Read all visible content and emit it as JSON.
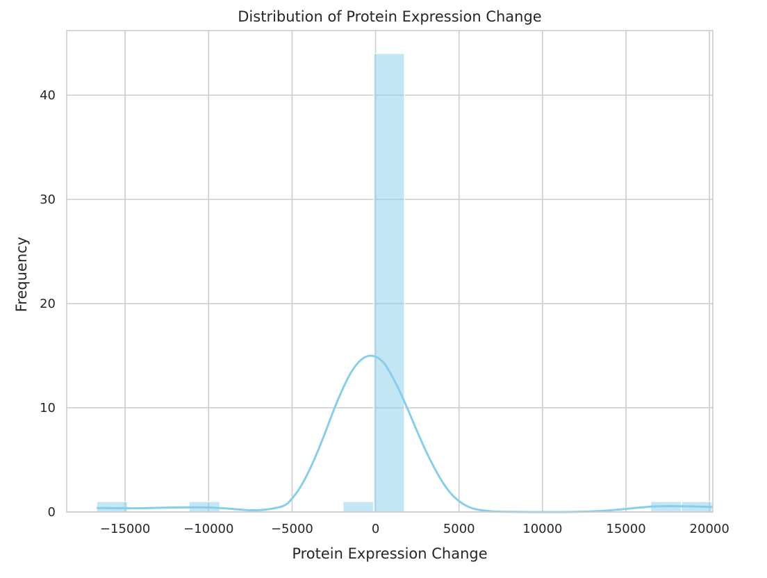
{
  "chart_data": {
    "type": "bar",
    "title": "Distribution of Protein Expression Change",
    "xlabel": "Protein Expression Change",
    "ylabel": "Frequency",
    "xlim": [
      -18500,
      20200
    ],
    "ylim": [
      0,
      46.2
    ],
    "xticks": [
      -15000,
      -10000,
      -5000,
      0,
      5000,
      10000,
      15000,
      20000
    ],
    "xtick_labels": [
      "−15000",
      "−10000",
      "−5000",
      "0",
      "5000",
      "10000",
      "15000",
      "20000"
    ],
    "yticks": [
      0,
      10,
      20,
      30,
      40
    ],
    "ytick_labels": [
      "0",
      "10",
      "20",
      "30",
      "40"
    ],
    "grid": true,
    "bar_color": "#87ceeb",
    "bins": [
      {
        "x0": -16700,
        "x1": -14860,
        "count": 1
      },
      {
        "x0": -11170,
        "x1": -9330,
        "count": 1
      },
      {
        "x0": -1950,
        "x1": -110,
        "count": 1
      },
      {
        "x0": -110,
        "x1": 1730,
        "count": 44
      },
      {
        "x0": 16480,
        "x1": 18320,
        "count": 1
      },
      {
        "x0": 18320,
        "x1": 20160,
        "count": 1
      }
    ],
    "kde": [
      [
        -16700,
        0.38
      ],
      [
        -14500,
        0.36
      ],
      [
        -12500,
        0.42
      ],
      [
        -10500,
        0.45
      ],
      [
        -9000,
        0.35
      ],
      [
        -7500,
        0.17
      ],
      [
        -6500,
        0.25
      ],
      [
        -5500,
        0.6
      ],
      [
        -5000,
        1.3
      ],
      [
        -4500,
        2.4
      ],
      [
        -4000,
        3.9
      ],
      [
        -3500,
        5.7
      ],
      [
        -3000,
        7.7
      ],
      [
        -2500,
        9.8
      ],
      [
        -2000,
        11.7
      ],
      [
        -1500,
        13.3
      ],
      [
        -1000,
        14.4
      ],
      [
        -500,
        14.95
      ],
      [
        0,
        14.9
      ],
      [
        500,
        14.3
      ],
      [
        1000,
        13.0
      ],
      [
        1500,
        11.4
      ],
      [
        2000,
        9.6
      ],
      [
        2500,
        7.7
      ],
      [
        3000,
        5.9
      ],
      [
        3500,
        4.3
      ],
      [
        4000,
        2.9
      ],
      [
        4500,
        1.8
      ],
      [
        5000,
        1.05
      ],
      [
        5500,
        0.55
      ],
      [
        6000,
        0.27
      ],
      [
        7000,
        0.06
      ],
      [
        8000,
        0.02
      ],
      [
        10000,
        0.0
      ],
      [
        12000,
        0.02
      ],
      [
        13500,
        0.1
      ],
      [
        15000,
        0.3
      ],
      [
        16000,
        0.45
      ],
      [
        17000,
        0.55
      ],
      [
        18500,
        0.55
      ],
      [
        20160,
        0.48
      ]
    ]
  }
}
